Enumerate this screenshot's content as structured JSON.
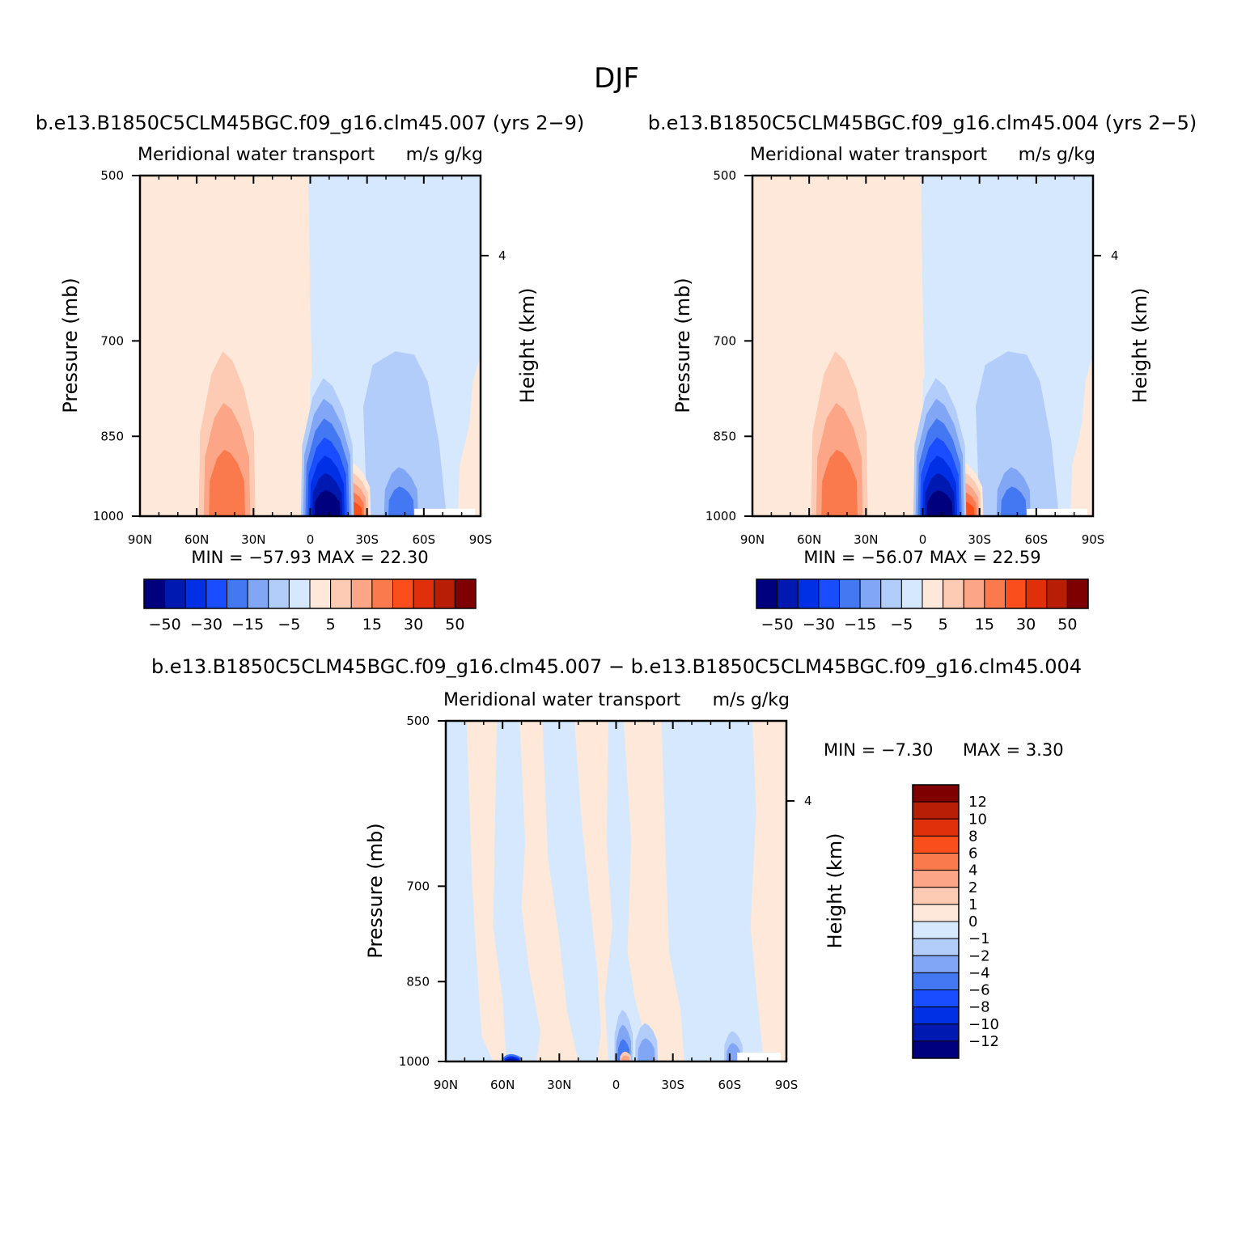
{
  "figure_title": "DJF",
  "colors": {
    "scale": [
      "#00007f",
      "#0019b1",
      "#0030e6",
      "#1a4dff",
      "#4477f2",
      "#80a6f5",
      "#b3cdfb",
      "#d6e8fd",
      "#fee8d9",
      "#fdcbb3",
      "#fca587",
      "#fb7a4d",
      "#fb4e1d",
      "#e0300b",
      "#b81e05",
      "#7f0000"
    ]
  },
  "chart_data": [
    {
      "type": "heatmap",
      "title": "b.e13.B1850C5CLM45BGC.f09_g16.clm45.007 (yrs 2−9)",
      "left_subtitle": "Meridional water transport",
      "right_subtitle": "m/s g/kg",
      "xlabel": "",
      "ylabel": "Pressure (mb)",
      "y2label": "Height (km)",
      "x_ticks": [
        "90N",
        "60N",
        "30N",
        "0",
        "30S",
        "60S",
        "90S"
      ],
      "xlim": [
        90,
        -90
      ],
      "y_ticks": [
        "500",
        "700",
        "850",
        "1000"
      ],
      "ylim": [
        500,
        1000
      ],
      "y2_ticks": [
        "4"
      ],
      "stats": "MIN = −57.93 MAX = 22.30",
      "colorbar_labels": [
        "−50",
        "−30",
        "−15",
        "−5",
        "5",
        "15",
        "30",
        "50"
      ],
      "features": [
        {
          "lat": -10,
          "p_center": 950,
          "value": -57.93
        },
        {
          "lat": 45,
          "p_center": 955,
          "value": 15
        },
        {
          "lat": -22,
          "p_center": 965,
          "value": 22.3
        },
        {
          "lat": -50,
          "p_center": 960,
          "value": -8
        }
      ]
    },
    {
      "type": "heatmap",
      "title": "b.e13.B1850C5CLM45BGC.f09_g16.clm45.004 (yrs 2−5)",
      "left_subtitle": "Meridional water transport",
      "right_subtitle": "m/s g/kg",
      "xlabel": "",
      "ylabel": "Pressure (mb)",
      "y2label": "Height (km)",
      "x_ticks": [
        "90N",
        "60N",
        "30N",
        "0",
        "30S",
        "60S",
        "90S"
      ],
      "xlim": [
        90,
        -90
      ],
      "y_ticks": [
        "500",
        "700",
        "850",
        "1000"
      ],
      "ylim": [
        500,
        1000
      ],
      "y2_ticks": [
        "4"
      ],
      "stats": "MIN = −56.07 MAX = 22.59",
      "colorbar_labels": [
        "−50",
        "−30",
        "−15",
        "−5",
        "5",
        "15",
        "30",
        "50"
      ],
      "features": [
        {
          "lat": -10,
          "p_center": 950,
          "value": -56.07
        },
        {
          "lat": 45,
          "p_center": 955,
          "value": 15
        },
        {
          "lat": -22,
          "p_center": 965,
          "value": 22.59
        },
        {
          "lat": -50,
          "p_center": 960,
          "value": -8
        }
      ]
    },
    {
      "type": "heatmap",
      "title": "b.e13.B1850C5CLM45BGC.f09_g16.clm45.007 − b.e13.B1850C5CLM45BGC.f09_g16.clm45.004",
      "left_subtitle": "Meridional water transport",
      "right_subtitle": "m/s g/kg",
      "xlabel": "",
      "ylabel": "Pressure (mb)",
      "y2label": "Height (km)",
      "x_ticks": [
        "90N",
        "60N",
        "30N",
        "0",
        "30S",
        "60S",
        "90S"
      ],
      "xlim": [
        90,
        -90
      ],
      "y_ticks": [
        "500",
        "700",
        "850",
        "1000"
      ],
      "ylim": [
        500,
        1000
      ],
      "y2_ticks": [
        "4"
      ],
      "stats_min": "MIN = −7.30",
      "stats_max": "MAX = 3.30",
      "colorbar_labels": [
        "12",
        "10",
        "8",
        "6",
        "4",
        "2",
        "1",
        "0",
        "−1",
        "−2",
        "−4",
        "−6",
        "−8",
        "−10",
        "−12"
      ],
      "features": [
        {
          "lat": -7,
          "p_center": 970,
          "value": -7.3
        },
        {
          "lat": -5,
          "p_center": 995,
          "value": 3.3
        },
        {
          "lat": 55,
          "p_center": 995,
          "value": -6
        }
      ]
    }
  ]
}
